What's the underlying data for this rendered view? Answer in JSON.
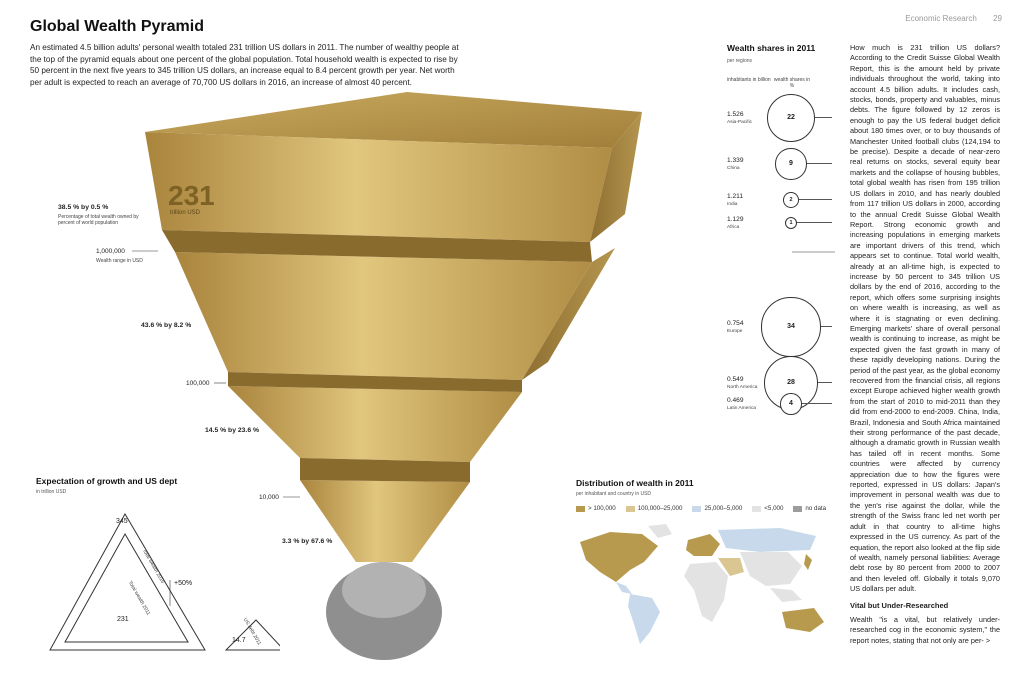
{
  "header": {
    "section": "Economic Research",
    "page": "29"
  },
  "title": "Global Wealth Pyramid",
  "intro": "An estimated 4.5 billion adults' personal wealth totaled 231 trillion US dollars in 2011. The number of wealthy people at the top of the pyramid equals about one percent of the global population. Total household wealth is expected to rise by 50 percent in the next five years to 345 trillion US dollars, an increase equal to 8.4 percent growth per year. Net worth per adult is expected to reach an average of 70,700 US dollars in 2016, an increase of almost 40 percent.",
  "pyramid": {
    "total_big": "231",
    "total_unit": "trillion USD",
    "top_pct": "38.5 % by 0.5 %",
    "top_pct_desc": "Percentage of total wealth owned by percent of world population",
    "range_1": "1,000,000",
    "range_desc": "Wealth range in USD",
    "tier_2": "43.6 % by 8.2 %",
    "range_2": "100,000",
    "tier_3": "14.5 % by 23.6 %",
    "range_3": "10,000",
    "tier_4": "3.3 % by 67.6 %"
  },
  "shares": {
    "title": "Wealth shares in 2011",
    "subtitle": "per regions",
    "col_left": "inhabitants in billion",
    "col_right": "wealth shares in %",
    "rows": [
      {
        "pop": "1.526",
        "region": "Asia-Pacific",
        "share": "22"
      },
      {
        "pop": "1.339",
        "region": "China",
        "share": "9"
      },
      {
        "pop": "1.211",
        "region": "India",
        "share": "2"
      },
      {
        "pop": "1.129",
        "region": "Africa",
        "share": "1"
      },
      {
        "pop": "0.754",
        "region": "Europe",
        "share": "34"
      },
      {
        "pop": "0.549",
        "region": "North America",
        "share": "28"
      },
      {
        "pop": "0.469",
        "region": "Latin America",
        "share": "4"
      }
    ]
  },
  "growth": {
    "title": "Expectation of growth and US dept",
    "subtitle": "in trillion USD",
    "top_value": "345",
    "inner_value": "231",
    "small_value": "14.7",
    "pct": "+50%",
    "label_2016": "Total wealth 2016",
    "label_2011": "Total wealth 2011",
    "label_debt": "US debt 2011"
  },
  "distribution": {
    "title": "Distribution of wealth in 2011",
    "subtitle": "per inhabitant and country in USD",
    "legend": [
      {
        "label": "> 100,000",
        "color": "#b89a4e"
      },
      {
        "label": "100,000–25,000",
        "color": "#d9c690"
      },
      {
        "label": "25,000–5,000",
        "color": "#c7d9ea"
      },
      {
        "label": "<5,000",
        "color": "#e3e3e3"
      },
      {
        "label": "no data",
        "color": "#9c9c9c"
      }
    ]
  },
  "article": {
    "p1": "How much is 231 trillion US dollars? According to the Credit Suisse Global Wealth Report, this is the amount held by private individuals throughout the world, taking into account 4.5 billion adults. It includes cash, stocks, bonds, property and valuables, minus debts. The figure followed by 12 zeros is enough to pay the US federal budget deficit about 180 times over, or to buy thousands of Manchester United football clubs (124,194 to be precise). Despite a decade of near-zero real returns on stocks, several equity bear markets and the collapse of housing bubbles, total global wealth has risen from 195 trillion US dollars in 2010, and has nearly doubled from 117 trillion US dollars in 2000, according to the annual Credit Suisse Global Wealth Report. Strong economic growth and increasing populations in emerging markets are important drivers of this trend, which appears set to continue. Total world wealth, already at an all-time high, is expected to increase by 50 percent to 345 trillion US dollars by the end of 2016, according to the report, which offers some surprising insights on where wealth is increasing, as well as where it is stagnating or even declining. Emerging markets' share of overall personal wealth is continuing to increase, as might be expected given the fast growth in many of these rapidly developing nations. During the period of the past year, as the global economy recovered from the financial crisis, all regions except Europe achieved higher wealth growth from the start of 2010 to mid-2011 than they did from end-2000 to end-2009. China, India, Brazil, Indonesia and South Africa maintained their strong performance of the past decade, although a dramatic growth in Russian wealth has tailed off in recent months. Some countries were affected by currency appreciation due to how the figures were reported, expressed in US dollars: Japan's improvement in personal wealth was due to the yen's rise against the dollar, while the strength of the Swiss franc led net worth per adult in that country to all-time highs expressed in the US currency. As part of the equation, the report also looked at the flip side of wealth, namely personal liabilities: Average debt rose by 80 percent from 2000 to 2007 and then leveled off. Globally it totals 9,070 US dollars per adult.",
    "h2": "Vital but Under-Researched",
    "p2": "Wealth \"is a vital, but relatively under-researched cog in the economic system,\" the report notes, stating that not only are per- >"
  }
}
